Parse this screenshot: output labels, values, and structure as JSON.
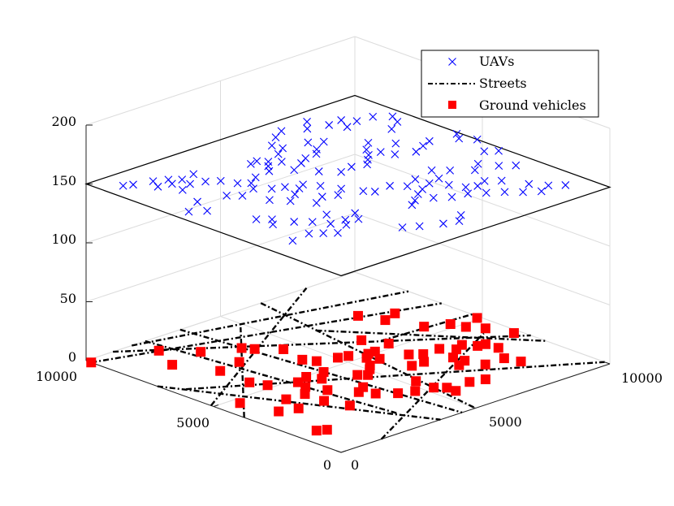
{
  "chart_data": {
    "type": "scatter",
    "series": [
      {
        "name": "UAVs",
        "marker": "x",
        "color": "#0000ff",
        "z": 150,
        "points": [
          [
            880,
            9080
          ],
          [
            620,
            9200
          ],
          [
            1450,
            8900
          ],
          [
            1830,
            8700
          ],
          [
            1250,
            8500
          ],
          [
            1680,
            8400
          ],
          [
            2100,
            8450
          ],
          [
            2620,
            8550
          ],
          [
            2450,
            7900
          ],
          [
            2020,
            8050
          ],
          [
            2780,
            7650
          ],
          [
            1550,
            7850
          ],
          [
            2980,
            7200
          ],
          [
            3250,
            6950
          ],
          [
            3000,
            6600
          ],
          [
            3650,
            7200
          ],
          [
            4280,
            8050
          ],
          [
            4550,
            8100
          ],
          [
            4740,
            7850
          ],
          [
            5000,
            7600
          ],
          [
            5350,
            8100
          ],
          [
            5750,
            8350
          ],
          [
            5680,
            8700
          ],
          [
            6200,
            9100
          ],
          [
            6650,
            9350
          ],
          [
            7280,
            9000
          ],
          [
            7650,
            9400
          ],
          [
            7900,
            8800
          ],
          [
            8400,
            8850
          ],
          [
            8150,
            8350
          ],
          [
            8650,
            8500
          ],
          [
            9200,
            8450
          ],
          [
            9600,
            8100
          ],
          [
            9400,
            7700
          ],
          [
            8900,
            7400
          ],
          [
            4180,
            5900
          ],
          [
            5200,
            6350
          ],
          [
            5600,
            5900
          ],
          [
            6080,
            6000
          ],
          [
            6520,
            5850
          ],
          [
            6780,
            6100
          ],
          [
            7050,
            6350
          ],
          [
            7450,
            6300
          ],
          [
            7600,
            5900
          ],
          [
            8150,
            5650
          ],
          [
            8600,
            5850
          ],
          [
            8980,
            6000
          ],
          [
            3020,
            3750
          ],
          [
            3450,
            4600
          ],
          [
            3900,
            4850
          ],
          [
            4300,
            4650
          ],
          [
            4700,
            4950
          ],
          [
            5000,
            4400
          ],
          [
            5200,
            4150
          ],
          [
            5800,
            4200
          ],
          [
            6120,
            3850
          ],
          [
            6650,
            4100
          ],
          [
            7150,
            3700
          ],
          [
            7450,
            4300
          ],
          [
            7800,
            3950
          ],
          [
            8300,
            3500
          ],
          [
            8700,
            3800
          ],
          [
            9000,
            3300
          ],
          [
            9350,
            3000
          ],
          [
            1700,
            4500
          ],
          [
            1400,
            4800
          ],
          [
            1450,
            4200
          ],
          [
            2000,
            3950
          ],
          [
            2350,
            3600
          ],
          [
            2600,
            3150
          ],
          [
            2850,
            2800
          ],
          [
            6000,
            2700
          ],
          [
            6400,
            2400
          ],
          [
            6900,
            2300
          ],
          [
            7300,
            2000
          ],
          [
            7700,
            1700
          ],
          [
            8050,
            1350
          ],
          [
            8450,
            1050
          ],
          [
            8900,
            1250
          ],
          [
            9250,
            950
          ],
          [
            500,
            6500
          ],
          [
            900,
            6200
          ],
          [
            1200,
            6900
          ],
          [
            3800,
            1600
          ],
          [
            4200,
            1350
          ],
          [
            4800,
            1050
          ],
          [
            5250,
            900
          ],
          [
            5600,
            1200
          ],
          [
            2700,
            5650
          ],
          [
            3050,
            5200
          ],
          [
            3500,
            5500
          ],
          [
            7300,
            6700
          ],
          [
            7700,
            7050
          ],
          [
            9700,
            5600
          ],
          [
            9900,
            5900
          ],
          [
            10000,
            5200
          ],
          [
            4800,
            6900
          ],
          [
            4250,
            7300
          ],
          [
            4500,
            7600
          ],
          [
            5300,
            7150
          ],
          [
            5650,
            7350
          ],
          [
            6100,
            7400
          ],
          [
            6350,
            7650
          ],
          [
            6550,
            8200
          ],
          [
            6900,
            7950
          ],
          [
            2100,
            6700
          ],
          [
            2400,
            6400
          ],
          [
            3350,
            6250
          ],
          [
            3700,
            6100
          ],
          [
            3900,
            5750
          ],
          [
            4450,
            5500
          ],
          [
            2250,
            2500
          ],
          [
            1950,
            2750
          ],
          [
            1650,
            3000
          ],
          [
            950,
            2900
          ],
          [
            3100,
            3100
          ],
          [
            3400,
            2900
          ],
          [
            3650,
            3300
          ],
          [
            5200,
            2700
          ],
          [
            5500,
            2900
          ],
          [
            5900,
            3200
          ],
          [
            6250,
            3400
          ],
          [
            6700,
            3600
          ],
          [
            7000,
            3150
          ],
          [
            7200,
            2700
          ],
          [
            7500,
            2550
          ],
          [
            7900,
            2700
          ],
          [
            8250,
            2400
          ],
          [
            9800,
            4150
          ],
          [
            9500,
            4400
          ],
          [
            8600,
            1700
          ],
          [
            8200,
            6500
          ]
        ]
      },
      {
        "name": "Streets",
        "style": "dash-dot",
        "color": "#000000",
        "z": 0,
        "segments": [
          [
            [
              0,
              9800
            ],
            [
              10000,
              6600
            ]
          ],
          [
            [
              400,
              6500
            ],
            [
              10000,
              200
            ]
          ],
          [
            [
              1700,
              10000
            ],
            [
              10000,
              7900
            ]
          ],
          [
            [
              0,
              7200
            ],
            [
              3700,
              0
            ]
          ],
          [
            [
              2200,
              10000
            ],
            [
              3200,
              1200
            ]
          ],
          [
            [
              3500,
              10000
            ],
            [
              4500,
              0
            ]
          ],
          [
            [
              6500,
              10000
            ],
            [
              5000,
              0
            ]
          ],
          [
            [
              0,
              3800
            ],
            [
              4800,
              9000
            ]
          ],
          [
            [
              0,
              5100
            ],
            [
              8200,
              10000
            ]
          ],
          [
            [
              6100,
              7400
            ],
            [
              10000,
              2500
            ]
          ],
          [
            [
              1000,
              10000
            ],
            [
              10000,
              3100
            ]
          ],
          [
            [
              1500,
              0
            ],
            [
              9200,
              4100
            ]
          ],
          [
            [
              6800,
              5600
            ],
            [
              10000,
              5400
            ]
          ]
        ]
      },
      {
        "name": "Ground vehicles",
        "marker": "square",
        "color": "#ff0000",
        "z": 0,
        "points": [
          [
            0,
            9800
          ],
          [
            1950,
            9200
          ],
          [
            1450,
            8150
          ],
          [
            2700,
            8350
          ],
          [
            3700,
            7800
          ],
          [
            2050,
            6900
          ],
          [
            2900,
            7050
          ],
          [
            3900,
            7500
          ],
          [
            4450,
            6950
          ],
          [
            7700,
            7450
          ],
          [
            8550,
            6900
          ],
          [
            8000,
            6700
          ],
          [
            8400,
            5600
          ],
          [
            9050,
            5250
          ],
          [
            9900,
            5100
          ],
          [
            9500,
            4350
          ],
          [
            9800,
            3550
          ],
          [
            4250,
            6000
          ],
          [
            6450,
            6000
          ],
          [
            4450,
            5650
          ],
          [
            5050,
            5450
          ],
          [
            5350,
            5350
          ],
          [
            5850,
            5100
          ],
          [
            6100,
            5100
          ],
          [
            5600,
            4900
          ],
          [
            3400,
            4950
          ],
          [
            2950,
            4800
          ],
          [
            2850,
            4400
          ],
          [
            2450,
            4000
          ],
          [
            2450,
            3250
          ],
          [
            1550,
            3300
          ],
          [
            1800,
            4050
          ],
          [
            1000,
            3500
          ],
          [
            700,
            4700
          ],
          [
            2200,
            5200
          ],
          [
            5250,
            4400
          ],
          [
            5800,
            4600
          ],
          [
            6600,
            4300
          ],
          [
            6900,
            4050
          ],
          [
            7500,
            4050
          ],
          [
            7800,
            3700
          ],
          [
            6500,
            3600
          ],
          [
            8150,
            3850
          ],
          [
            8400,
            3500
          ],
          [
            8700,
            3000
          ],
          [
            7300,
            3300
          ],
          [
            3950,
            3300
          ],
          [
            3850,
            2700
          ],
          [
            7550,
            2300
          ],
          [
            5300,
            1950
          ],
          [
            5550,
            1700
          ],
          [
            6300,
            1600
          ],
          [
            6750,
            1450
          ],
          [
            5550,
            1350
          ],
          [
            8250,
            2300
          ],
          [
            8400,
            1800
          ],
          [
            7000,
            2750
          ],
          [
            7350,
            2900
          ],
          [
            5300,
            2650
          ],
          [
            3100,
            3800
          ],
          [
            3600,
            4550
          ],
          [
            4000,
            4900
          ],
          [
            6800,
            5300
          ],
          [
            6050,
            3600
          ],
          [
            4500,
            4100
          ],
          [
            4700,
            3900
          ],
          [
            5050,
            4200
          ],
          [
            8650,
            3450
          ],
          [
            9200,
            4800
          ],
          [
            4300,
            2300
          ],
          [
            4750,
            2100
          ],
          [
            2000,
            5700
          ],
          [
            3600,
            3100
          ],
          [
            2700,
            2500
          ],
          [
            700,
            1700
          ],
          [
            950,
            1550
          ]
        ]
      }
    ],
    "xlim": [
      0,
      10000
    ],
    "ylim": [
      0,
      10000
    ],
    "zlim": [
      0,
      200
    ],
    "z_ticks": [
      "0",
      "50",
      "100",
      "150",
      "200"
    ],
    "x_ticks": [
      "0",
      "5000",
      "10000"
    ],
    "y_ticks": [
      "0",
      "5000",
      "10000"
    ],
    "grid": true,
    "legend_position": "top-right",
    "colors": {
      "uav": "#0000ff",
      "vehicle": "#ff0000",
      "street": "#000000",
      "grid": "#dcdcdc"
    }
  },
  "legend": {
    "items": [
      {
        "label": "UAVs"
      },
      {
        "label": "Streets"
      },
      {
        "label": "Ground vehicles"
      }
    ]
  }
}
